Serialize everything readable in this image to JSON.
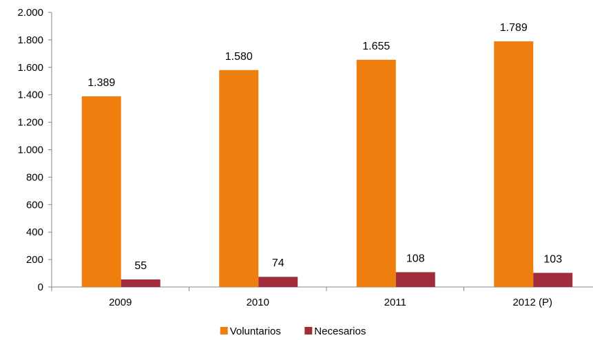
{
  "chart_data": {
    "type": "bar",
    "categories": [
      "2009",
      "2010",
      "2011",
      "2012 (P)"
    ],
    "series": [
      {
        "name": "Voluntarios",
        "values": [
          1389,
          1580,
          1655,
          1789
        ],
        "labels": [
          "1.389",
          "1.580",
          "1.655",
          "1.789"
        ],
        "color": "#EE7F0E"
      },
      {
        "name": "Necesarios",
        "values": [
          55,
          74,
          108,
          103
        ],
        "labels": [
          "55",
          "74",
          "108",
          "103"
        ],
        "color": "#A02C3C"
      }
    ],
    "yticks": [
      0,
      200,
      400,
      600,
      800,
      1000,
      1200,
      1400,
      1600,
      1800,
      2000
    ],
    "ytick_labels": [
      "0",
      "200",
      "400",
      "600",
      "800",
      "1.000",
      "1.200",
      "1.400",
      "1.600",
      "1.800",
      "2.000"
    ],
    "ylim": [
      0,
      2000
    ],
    "grid": false,
    "legend_position": "bottom-center"
  }
}
